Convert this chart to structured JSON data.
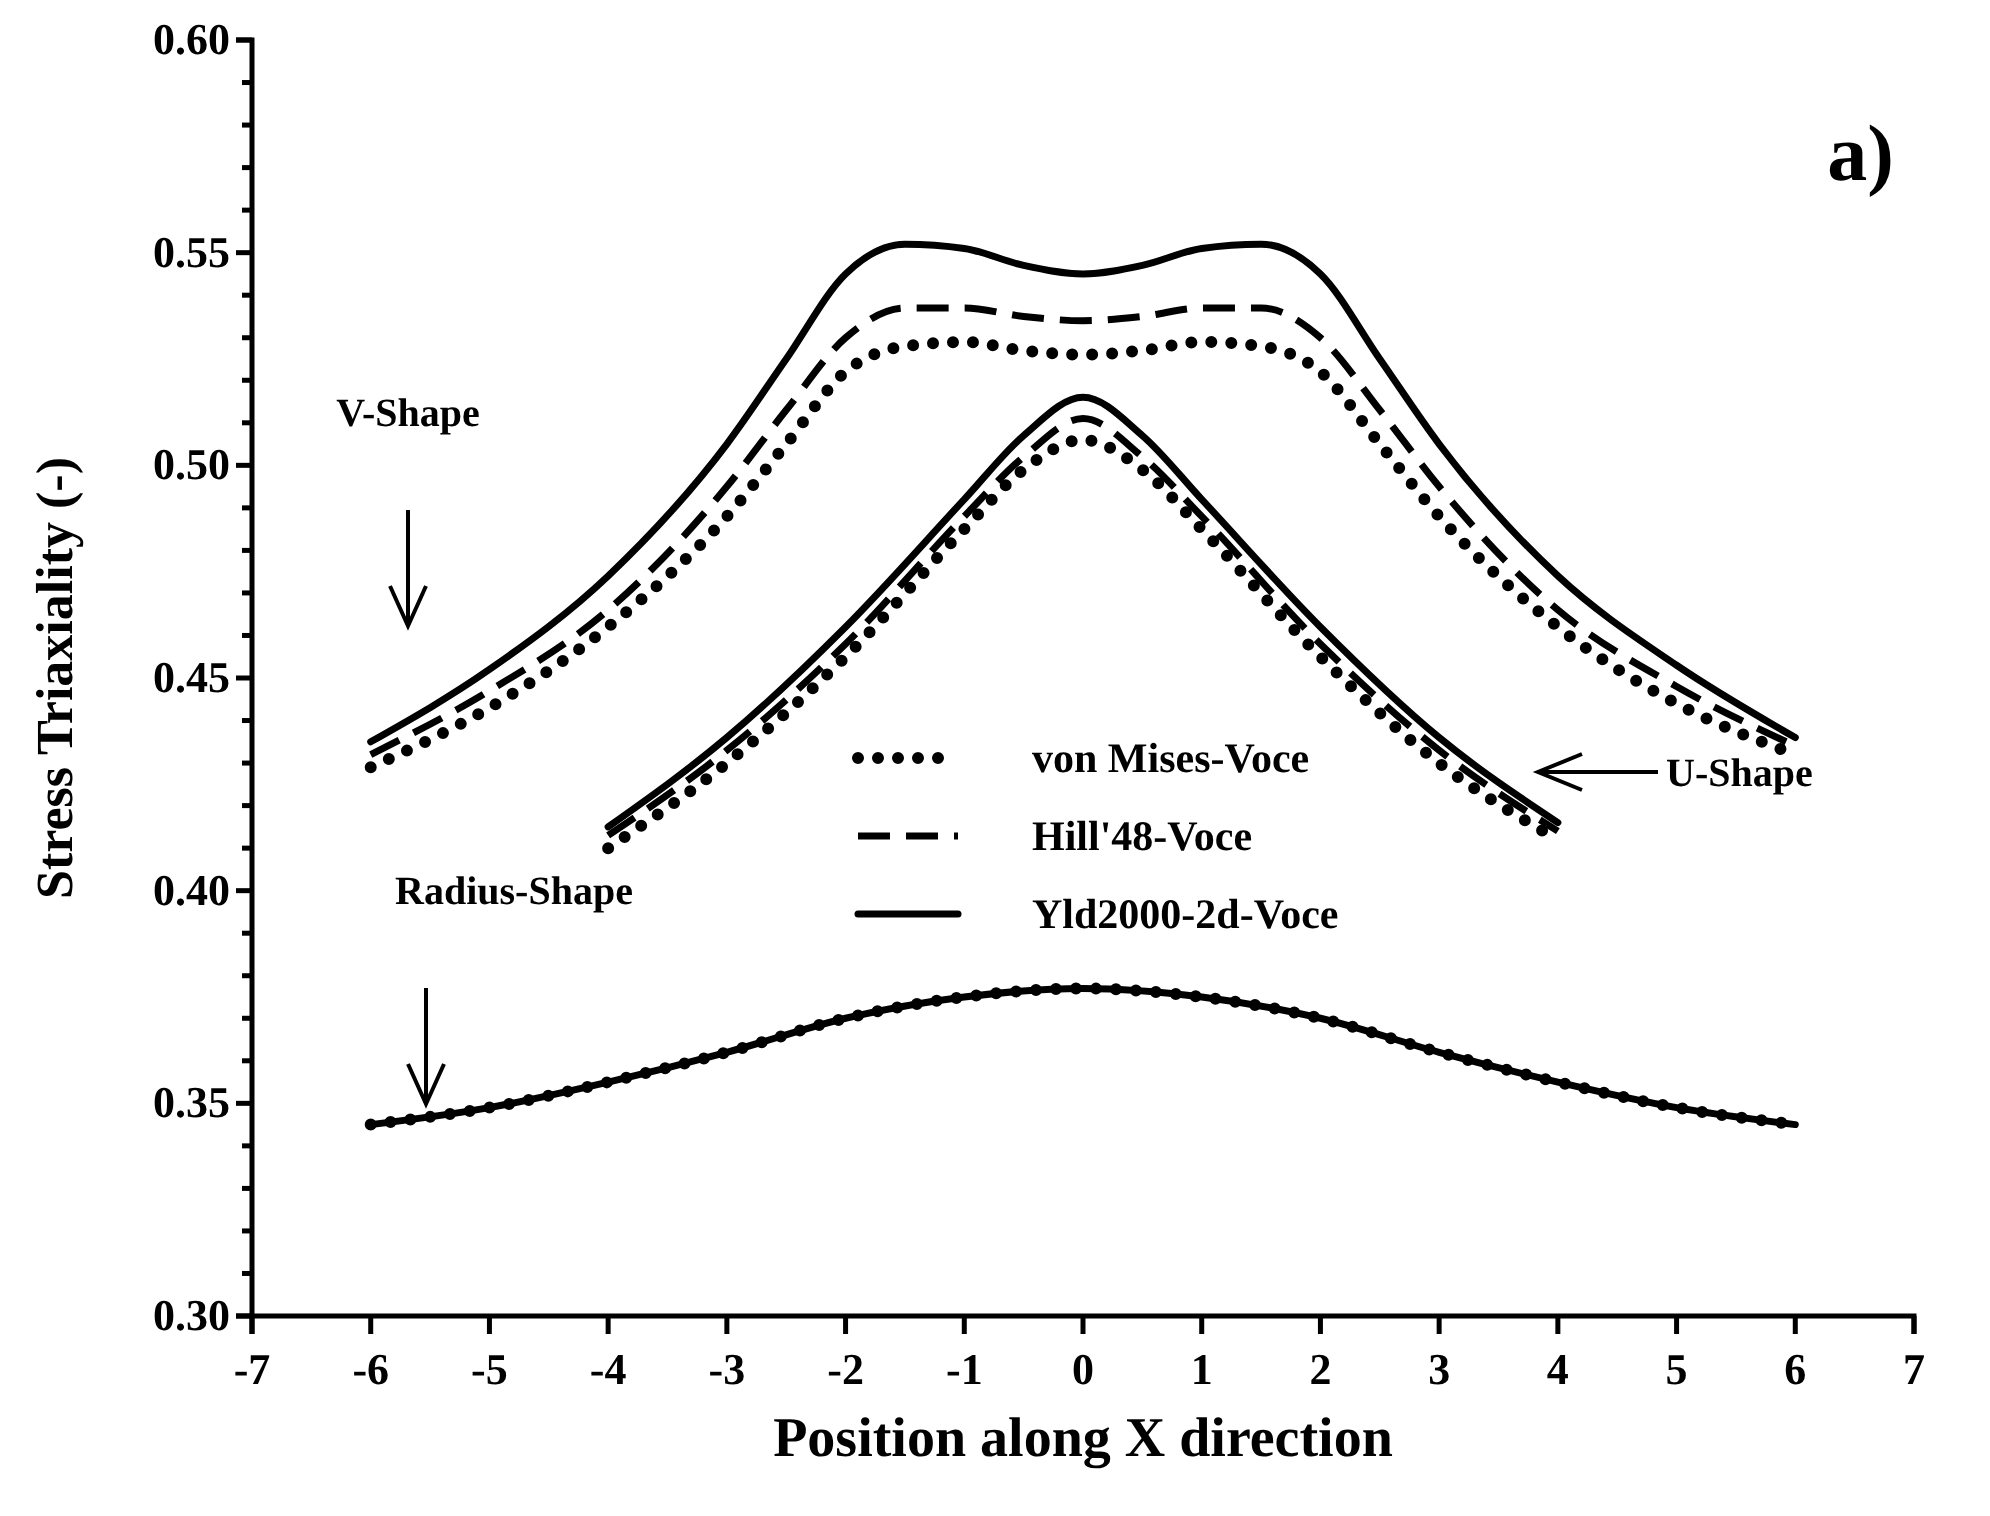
{
  "chart_data": {
    "type": "line",
    "xlabel": "Position along X direction",
    "ylabel": "Stress Triaxiality (-)",
    "xlim": [
      -7,
      7
    ],
    "xticks": [
      -7,
      -6,
      -5,
      -4,
      -3,
      -2,
      -1,
      0,
      1,
      2,
      3,
      4,
      5,
      6,
      7
    ],
    "ylim": [
      0.3,
      0.6
    ],
    "yticks": [
      {
        "value": 0.3,
        "label": "0.30"
      },
      {
        "value": 0.31,
        "label": null
      },
      {
        "value": 0.32,
        "label": null
      },
      {
        "value": 0.33,
        "label": null
      },
      {
        "value": 0.34,
        "label": null
      },
      {
        "value": 0.35,
        "label": "0.35"
      },
      {
        "value": 0.36,
        "label": null
      },
      {
        "value": 0.37,
        "label": null
      },
      {
        "value": 0.38,
        "label": null
      },
      {
        "value": 0.39,
        "label": null
      },
      {
        "value": 0.4,
        "label": "0.40"
      },
      {
        "value": 0.41,
        "label": null
      },
      {
        "value": 0.42,
        "label": null
      },
      {
        "value": 0.43,
        "label": null
      },
      {
        "value": 0.44,
        "label": null
      },
      {
        "value": 0.45,
        "label": "0.45"
      },
      {
        "value": 0.46,
        "label": null
      },
      {
        "value": 0.47,
        "label": null
      },
      {
        "value": 0.48,
        "label": null
      },
      {
        "value": 0.49,
        "label": null
      },
      {
        "value": 0.5,
        "label": "0.50"
      },
      {
        "value": 0.51,
        "label": null
      },
      {
        "value": 0.52,
        "label": null
      },
      {
        "value": 0.53,
        "label": null
      },
      {
        "value": 0.54,
        "label": null
      },
      {
        "value": 0.55,
        "label": "0.55"
      },
      {
        "value": 0.56,
        "label": null
      },
      {
        "value": 0.57,
        "label": null
      },
      {
        "value": 0.58,
        "label": null
      },
      {
        "value": 0.59,
        "label": null
      },
      {
        "value": 0.6,
        "label": "0.60"
      }
    ],
    "grid": false,
    "legend": "center",
    "marker": "none",
    "annotations": [
      "a)",
      "V-Shape",
      "U-Shape",
      "Radius-Shape"
    ],
    "series": [
      {
        "name": "von Mises-Voce",
        "color": "#000000",
        "line_style": "dotted",
        "x": [
          -6,
          -5,
          -4,
          -3,
          -2.5,
          -2,
          -1.5,
          -1,
          -0.5,
          0,
          0.5,
          1,
          1.5,
          2,
          2.5,
          3,
          4,
          5,
          6
        ],
        "values": [
          0.429,
          0.443,
          0.462,
          0.488,
          0.505,
          0.522,
          0.528,
          0.529,
          0.527,
          0.526,
          0.527,
          0.529,
          0.528,
          0.522,
          0.505,
          0.488,
          0.462,
          0.444,
          0.432
        ]
      },
      {
        "name": "Hill'48-Voce",
        "color": "#000000",
        "line_style": "dashed",
        "x": [
          -6,
          -5,
          -4,
          -3,
          -2.5,
          -2,
          -1.5,
          -1,
          -0.5,
          0,
          0.5,
          1,
          1.5,
          2,
          2.5,
          3,
          4,
          5,
          6
        ],
        "values": [
          0.432,
          0.447,
          0.466,
          0.495,
          0.513,
          0.53,
          0.537,
          0.537,
          0.535,
          0.534,
          0.535,
          0.537,
          0.537,
          0.53,
          0.513,
          0.495,
          0.466,
          0.448,
          0.434
        ]
      },
      {
        "name": "Yld2000-2d-Voce",
        "color": "#000000",
        "line_style": "solid",
        "x": [
          -6,
          -5,
          -4,
          -3,
          -2.5,
          -2,
          -1.5,
          -1,
          -0.5,
          0,
          0.5,
          1,
          1.5,
          2,
          2.5,
          3,
          4,
          5,
          6
        ],
        "values": [
          0.435,
          0.452,
          0.474,
          0.505,
          0.525,
          0.545,
          0.552,
          0.551,
          0.547,
          0.545,
          0.547,
          0.551,
          0.552,
          0.545,
          0.525,
          0.505,
          0.474,
          0.453,
          0.436
        ]
      },
      {
        "color": "#000000",
        "line_style": "dotted",
        "x": [
          -4,
          -3,
          -2,
          -1,
          -0.5,
          0,
          0.5,
          1,
          2,
          3,
          4
        ],
        "values": [
          0.41,
          0.43,
          0.455,
          0.485,
          0.499,
          0.506,
          0.499,
          0.485,
          0.455,
          0.43,
          0.412
        ]
      },
      {
        "color": "#000000",
        "line_style": "dashed",
        "x": [
          -4,
          -3,
          -2,
          -1,
          -0.5,
          0,
          0.5,
          1,
          2,
          3,
          4
        ],
        "values": [
          0.413,
          0.433,
          0.458,
          0.488,
          0.502,
          0.511,
          0.502,
          0.488,
          0.458,
          0.433,
          0.414
        ]
      },
      {
        "color": "#000000",
        "line_style": "solid",
        "x": [
          -4,
          -3,
          -2,
          -1,
          -0.5,
          0,
          0.5,
          1,
          2,
          3,
          4
        ],
        "values": [
          0.415,
          0.436,
          0.462,
          0.492,
          0.507,
          0.516,
          0.507,
          0.492,
          0.462,
          0.436,
          0.416
        ]
      },
      {
        "color": "#000000",
        "line_style": "dotted",
        "x": [
          -6,
          -5,
          -4,
          -3,
          -2,
          -1,
          0,
          1,
          2,
          3,
          4,
          5,
          6
        ],
        "values": [
          0.345,
          0.349,
          0.355,
          0.362,
          0.37,
          0.375,
          0.377,
          0.375,
          0.37,
          0.362,
          0.355,
          0.349,
          0.345
        ]
      },
      {
        "color": "#000000",
        "line_style": "solid",
        "x": [
          -6,
          -5,
          -4,
          -3,
          -2,
          -1,
          0,
          1,
          2,
          3,
          4,
          5,
          6
        ],
        "values": [
          0.345,
          0.349,
          0.355,
          0.362,
          0.37,
          0.375,
          0.377,
          0.375,
          0.37,
          0.362,
          0.355,
          0.349,
          0.345
        ]
      }
    ]
  }
}
